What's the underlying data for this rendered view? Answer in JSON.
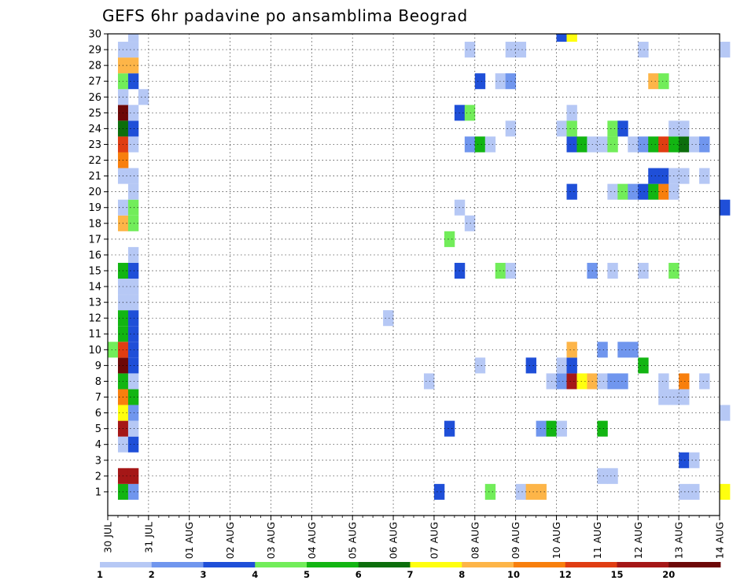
{
  "chart_data": {
    "type": "heatmap",
    "title": "GEFS 6hr padavine po ansamblima Beograd",
    "x_tick_labels": [
      "30 JUL",
      "31 JUL",
      "01 AUG",
      "02 AUG",
      "03 AUG",
      "04 AUG",
      "05 AUG",
      "06 AUG",
      "07 AUG",
      "08 AUG",
      "09 AUG",
      "10 AUG",
      "11 AUG",
      "12 AUG",
      "13 AUG",
      "14 AUG"
    ],
    "y_tick_labels": [
      "1",
      "2",
      "3",
      "4",
      "5",
      "6",
      "7",
      "8",
      "9",
      "10",
      "11",
      "12",
      "13",
      "14",
      "15",
      "16",
      "17",
      "18",
      "19",
      "20",
      "21",
      "22",
      "23",
      "24",
      "25",
      "26",
      "27",
      "28",
      "29",
      "30"
    ],
    "steps_per_day": 4,
    "ensemble_members": 30,
    "legend": {
      "colors": [
        "#b6c8f5",
        "#7096ee",
        "#1f4fd8",
        "#72ed5a",
        "#12b512",
        "#0c6e0c",
        "#ffff0f",
        "#fdb548",
        "#f87f0d",
        "#e03d12",
        "#a51717",
        "#6d0808"
      ],
      "labels": [
        "1",
        "2",
        "3",
        "4",
        "5",
        "6",
        "7",
        "8",
        "10",
        "12",
        "15",
        "20"
      ]
    },
    "cells": [
      [
        1,
        1,
        5
      ],
      [
        1,
        2,
        2
      ],
      [
        1,
        32,
        3
      ],
      [
        1,
        37,
        4
      ],
      [
        1,
        40,
        1
      ],
      [
        1,
        41,
        8
      ],
      [
        1,
        42,
        8
      ],
      [
        1,
        56,
        1
      ],
      [
        1,
        57,
        1
      ],
      [
        1,
        60,
        7
      ],
      [
        2,
        1,
        11
      ],
      [
        2,
        2,
        11
      ],
      [
        2,
        48,
        1
      ],
      [
        2,
        49,
        1
      ],
      [
        3,
        56,
        3
      ],
      [
        3,
        57,
        1
      ],
      [
        4,
        1,
        1
      ],
      [
        4,
        2,
        3
      ],
      [
        5,
        1,
        11
      ],
      [
        5,
        2,
        1
      ],
      [
        5,
        33,
        3
      ],
      [
        5,
        42,
        2
      ],
      [
        5,
        43,
        5
      ],
      [
        5,
        44,
        1
      ],
      [
        5,
        48,
        5
      ],
      [
        6,
        1,
        7
      ],
      [
        6,
        2,
        2
      ],
      [
        6,
        60,
        1
      ],
      [
        7,
        1,
        9
      ],
      [
        7,
        2,
        5
      ],
      [
        7,
        54,
        1
      ],
      [
        7,
        55,
        1
      ],
      [
        7,
        56,
        1
      ],
      [
        8,
        1,
        5
      ],
      [
        8,
        2,
        1
      ],
      [
        8,
        31,
        1
      ],
      [
        8,
        43,
        1
      ],
      [
        8,
        44,
        2
      ],
      [
        8,
        45,
        11
      ],
      [
        8,
        46,
        7
      ],
      [
        8,
        47,
        8
      ],
      [
        8,
        48,
        1
      ],
      [
        8,
        49,
        2
      ],
      [
        8,
        50,
        2
      ],
      [
        8,
        54,
        1
      ],
      [
        8,
        56,
        9
      ],
      [
        8,
        58,
        1
      ],
      [
        9,
        1,
        12
      ],
      [
        9,
        2,
        3
      ],
      [
        9,
        36,
        1
      ],
      [
        9,
        41,
        3
      ],
      [
        9,
        44,
        1
      ],
      [
        9,
        45,
        3
      ],
      [
        9,
        52,
        5
      ],
      [
        10,
        0,
        4
      ],
      [
        10,
        1,
        10
      ],
      [
        10,
        2,
        3
      ],
      [
        10,
        45,
        8
      ],
      [
        10,
        48,
        2
      ],
      [
        10,
        50,
        2
      ],
      [
        10,
        51,
        2
      ],
      [
        11,
        1,
        5
      ],
      [
        11,
        2,
        3
      ],
      [
        12,
        1,
        5
      ],
      [
        12,
        2,
        3
      ],
      [
        12,
        27,
        1
      ],
      [
        13,
        1,
        1
      ],
      [
        13,
        2,
        1
      ],
      [
        14,
        1,
        1
      ],
      [
        14,
        2,
        1
      ],
      [
        15,
        1,
        5
      ],
      [
        15,
        2,
        3
      ],
      [
        15,
        34,
        3
      ],
      [
        15,
        38,
        4
      ],
      [
        15,
        39,
        1
      ],
      [
        15,
        47,
        2
      ],
      [
        15,
        49,
        1
      ],
      [
        15,
        52,
        1
      ],
      [
        15,
        55,
        4
      ],
      [
        16,
        2,
        1
      ],
      [
        17,
        33,
        4
      ],
      [
        18,
        1,
        8
      ],
      [
        18,
        2,
        4
      ],
      [
        18,
        35,
        1
      ],
      [
        19,
        1,
        1
      ],
      [
        19,
        2,
        4
      ],
      [
        19,
        34,
        1
      ],
      [
        19,
        60,
        3
      ],
      [
        20,
        2,
        1
      ],
      [
        20,
        45,
        3
      ],
      [
        20,
        49,
        1
      ],
      [
        20,
        50,
        4
      ],
      [
        20,
        51,
        2
      ],
      [
        20,
        52,
        3
      ],
      [
        20,
        53,
        5
      ],
      [
        20,
        54,
        9
      ],
      [
        20,
        55,
        1
      ],
      [
        21,
        1,
        1
      ],
      [
        21,
        2,
        1
      ],
      [
        21,
        53,
        3
      ],
      [
        21,
        54,
        3
      ],
      [
        21,
        55,
        1
      ],
      [
        21,
        56,
        1
      ],
      [
        21,
        58,
        1
      ],
      [
        22,
        1,
        9
      ],
      [
        23,
        1,
        10
      ],
      [
        23,
        2,
        1
      ],
      [
        23,
        35,
        2
      ],
      [
        23,
        36,
        5
      ],
      [
        23,
        37,
        1
      ],
      [
        23,
        45,
        3
      ],
      [
        23,
        46,
        5
      ],
      [
        23,
        47,
        1
      ],
      [
        23,
        48,
        1
      ],
      [
        23,
        49,
        4
      ],
      [
        23,
        51,
        1
      ],
      [
        23,
        52,
        2
      ],
      [
        23,
        53,
        5
      ],
      [
        23,
        54,
        10
      ],
      [
        23,
        55,
        5
      ],
      [
        23,
        56,
        6
      ],
      [
        23,
        57,
        1
      ],
      [
        23,
        58,
        2
      ],
      [
        24,
        1,
        6
      ],
      [
        24,
        2,
        3
      ],
      [
        24,
        39,
        1
      ],
      [
        24,
        44,
        1
      ],
      [
        24,
        45,
        4
      ],
      [
        24,
        49,
        4
      ],
      [
        24,
        50,
        3
      ],
      [
        24,
        55,
        1
      ],
      [
        24,
        56,
        1
      ],
      [
        25,
        1,
        12
      ],
      [
        25,
        2,
        1
      ],
      [
        25,
        34,
        3
      ],
      [
        25,
        35,
        4
      ],
      [
        25,
        45,
        1
      ],
      [
        26,
        1,
        1
      ],
      [
        26,
        3,
        1
      ],
      [
        27,
        1,
        4
      ],
      [
        27,
        2,
        3
      ],
      [
        27,
        36,
        3
      ],
      [
        27,
        38,
        1
      ],
      [
        27,
        39,
        2
      ],
      [
        27,
        53,
        8
      ],
      [
        27,
        54,
        4
      ],
      [
        28,
        1,
        8
      ],
      [
        28,
        2,
        8
      ],
      [
        29,
        1,
        1
      ],
      [
        29,
        2,
        1
      ],
      [
        29,
        35,
        1
      ],
      [
        29,
        39,
        1
      ],
      [
        29,
        40,
        1
      ],
      [
        29,
        52,
        1
      ],
      [
        29,
        60,
        1
      ],
      [
        30,
        2,
        1
      ],
      [
        30,
        44,
        3
      ],
      [
        30,
        45,
        7
      ]
    ]
  }
}
